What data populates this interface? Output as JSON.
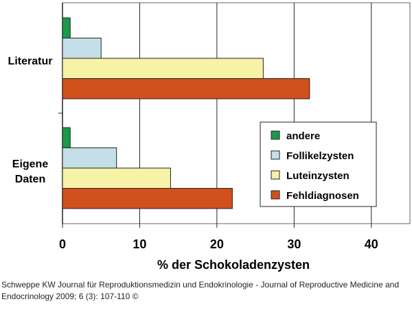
{
  "chart_data": {
    "type": "bar",
    "orientation": "horizontal",
    "categories": [
      "Literatur",
      "Eigene Daten"
    ],
    "series": [
      {
        "name": "andere",
        "values": [
          1,
          1
        ],
        "color": "#1a9a4a"
      },
      {
        "name": "Follikelzysten",
        "values": [
          5,
          7
        ],
        "color": "#c4dfe8"
      },
      {
        "name": "Luteinzysten",
        "values": [
          26,
          14
        ],
        "color": "#f6f2a6"
      },
      {
        "name": "Fehldiagnosen",
        "values": [
          32,
          22
        ],
        "color": "#d2501c"
      }
    ],
    "xlabel": "% der Schokoladenzysten",
    "ylabel": "",
    "xlim": [
      0,
      45
    ],
    "xticks": [
      "0",
      "10",
      "20",
      "30",
      "40"
    ],
    "grid": "vertical",
    "legend_position": "bottom-right",
    "category_label_lines": [
      [
        "Literatur"
      ],
      [
        "Eigene",
        "Daten"
      ]
    ]
  },
  "caption": "Schweppe KW Journal für Reproduktionsmedizin und Endokrinologie - Journal of Reproductive Medicine and Endocrinology 2009; 6 (3): 107-110 ©"
}
